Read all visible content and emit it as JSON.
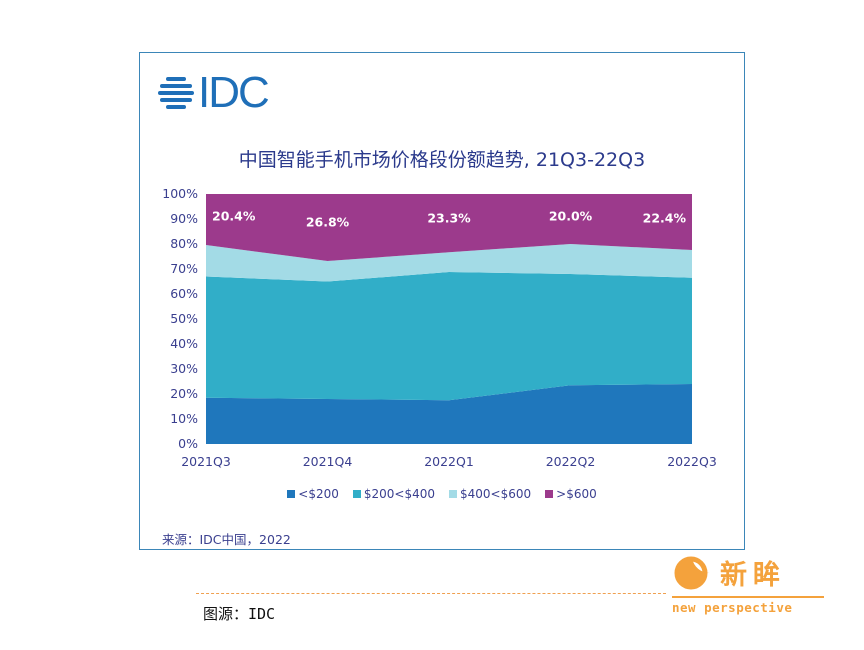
{
  "logo": {
    "text": "IDC"
  },
  "chart_data": {
    "type": "area",
    "stacked": true,
    "title": "中国智能手机市场价格段份额趋势, 21Q3-22Q3",
    "categories": [
      "2021Q3",
      "2021Q4",
      "2022Q1",
      "2022Q2",
      "2022Q3"
    ],
    "ylim": [
      0,
      100
    ],
    "yticks": [
      "0%",
      "10%",
      "20%",
      "30%",
      "40%",
      "50%",
      "60%",
      "70%",
      "80%",
      "90%",
      "100%"
    ],
    "grid": false,
    "legend_position": "bottom",
    "series": [
      {
        "name": "<$200",
        "color": "#1f77bc",
        "values": [
          18.5,
          18.0,
          17.5,
          23.5,
          24.0
        ]
      },
      {
        "name": "$200<$400",
        "color": "#31aec8",
        "values": [
          48.5,
          47.0,
          51.3,
          44.5,
          42.5
        ]
      },
      {
        "name": "$400<$600",
        "color": "#a3dbe6",
        "values": [
          12.6,
          8.2,
          7.9,
          12.0,
          11.1
        ]
      },
      {
        "name": ">$600",
        "color": "#9c3a8c",
        "values": [
          20.4,
          26.8,
          23.3,
          20.0,
          22.4
        ]
      }
    ],
    "data_labels": [
      "20.4%",
      "26.8%",
      "23.3%",
      "20.0%",
      "22.4%"
    ]
  },
  "source": "来源：IDC中国，2022",
  "credit": "图源：IDC",
  "brand": {
    "cn": "新眸",
    "en": "new perspective",
    "color": "#f4a23c"
  }
}
